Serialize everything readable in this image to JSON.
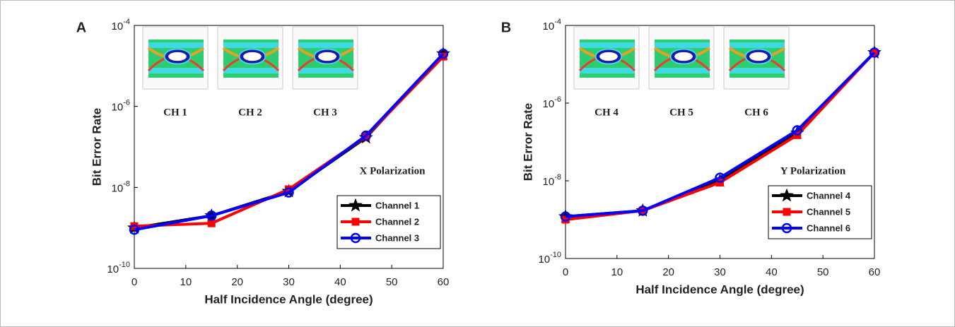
{
  "chart_data": [
    {
      "type": "line",
      "panel_label": "A",
      "xlabel": "Half Incidence Angle (degree)",
      "ylabel": "Bit Error Rate",
      "annotation": "X Polarization",
      "insets": [
        "CH 1",
        "CH 2",
        "CH 3"
      ],
      "x": [
        0,
        15,
        30,
        45,
        60
      ],
      "xlim": [
        0,
        60
      ],
      "xticks": [
        0,
        10,
        20,
        30,
        40,
        50,
        60
      ],
      "log_y": true,
      "ylim": [
        1e-10,
        0.0001
      ],
      "yticks": [
        {
          "value": 1e-10,
          "label": "10^-10"
        },
        {
          "value": 1e-08,
          "label": "10^-8"
        },
        {
          "value": 1e-06,
          "label": "10^-6"
        },
        {
          "value": 0.0001,
          "label": "10^-4"
        }
      ],
      "legend": "lower right",
      "series": [
        {
          "name": "Channel 1",
          "color": "#000000",
          "marker": "star",
          "values": [
            1e-09,
            2e-09,
            8e-09,
            1.7e-07,
            2e-05
          ]
        },
        {
          "name": "Channel 2",
          "color": "#ff0000",
          "marker": "square",
          "values": [
            1.1e-09,
            1.3e-09,
            9e-09,
            1.8e-07,
            1.7e-05
          ]
        },
        {
          "name": "Channel 3",
          "color": "#0000ff",
          "marker": "circle",
          "values": [
            9e-10,
            2e-09,
            7.5e-09,
            1.9e-07,
            2e-05
          ]
        }
      ]
    },
    {
      "type": "line",
      "panel_label": "B",
      "xlabel": "Half Incidence Angle (degree)",
      "ylabel": "Bit Error Rate",
      "annotation": "Y Polarization",
      "insets": [
        "CH 4",
        "CH 5",
        "CH 6"
      ],
      "x": [
        0,
        15,
        30,
        45,
        60
      ],
      "xlim": [
        0,
        60
      ],
      "xticks": [
        0,
        10,
        20,
        30,
        40,
        50,
        60
      ],
      "log_y": true,
      "ylim": [
        1e-10,
        0.0001
      ],
      "yticks": [
        {
          "value": 1e-10,
          "label": "10^-10"
        },
        {
          "value": 1e-08,
          "label": "10^-8"
        },
        {
          "value": 1e-06,
          "label": "10^-6"
        },
        {
          "value": 0.0001,
          "label": "10^-4"
        }
      ],
      "legend": "lower right",
      "series": [
        {
          "name": "Channel 4",
          "color": "#000000",
          "marker": "star",
          "values": [
            1.2e-09,
            1.7e-09,
            1e-08,
            1.7e-07,
            2e-05
          ]
        },
        {
          "name": "Channel 5",
          "color": "#ff0000",
          "marker": "square",
          "values": [
            1e-09,
            1.7e-09,
            9e-09,
            1.5e-07,
            2e-05
          ]
        },
        {
          "name": "Channel 6",
          "color": "#0000ff",
          "marker": "circle",
          "values": [
            1.2e-09,
            1.7e-09,
            1.2e-08,
            2e-07,
            2e-05
          ]
        }
      ]
    }
  ]
}
